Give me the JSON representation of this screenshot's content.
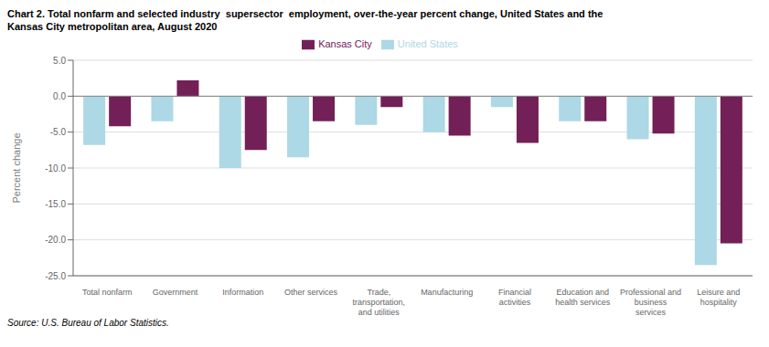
{
  "chart_data": {
    "type": "bar",
    "title": "Chart 2. Total nonfarm and selected industry  supersector  employment, over-the-year percent change, United States and the\nKansas City metropolitan area, August 2020",
    "y_label": "Percent change",
    "annotations": [
      "Source: U.S. Bureau of Labor Statistics."
    ],
    "categories": [
      "Total nonfarm",
      "Government",
      "Information",
      "Other services",
      "Trade,\ntransportation,\nand utilities",
      "Manufacturing",
      "Financial\nactivities",
      "Education and\nhealth services",
      "Professional and\nbusiness\nservices",
      "Leisure and\nhospitality"
    ],
    "series": [
      {
        "name": "United States",
        "color": "#add8e6",
        "values": [
          -6.8,
          -3.5,
          -10.0,
          -8.5,
          -4.0,
          -5.0,
          -1.5,
          -3.5,
          -6.0,
          -23.5
        ]
      },
      {
        "name": "Kansas City",
        "color": "#722057",
        "values": [
          -4.2,
          2.2,
          -7.5,
          -3.5,
          -1.5,
          -5.5,
          -6.5,
          -3.5,
          -5.2,
          -20.5
        ]
      }
    ],
    "ylim": [
      -25.0,
      5.0
    ],
    "yticks": [
      {
        "value": 5.0,
        "label": "5.0"
      },
      {
        "value": 0.0,
        "label": "0.0"
      },
      {
        "value": -5.0,
        "label": "-5.0"
      },
      {
        "value": -10.0,
        "label": "-10.0"
      },
      {
        "value": -15.0,
        "label": "-15.0"
      },
      {
        "value": -20.0,
        "label": "-20.0"
      },
      {
        "value": -25.0,
        "label": "-25.0"
      }
    ],
    "grid": true
  }
}
